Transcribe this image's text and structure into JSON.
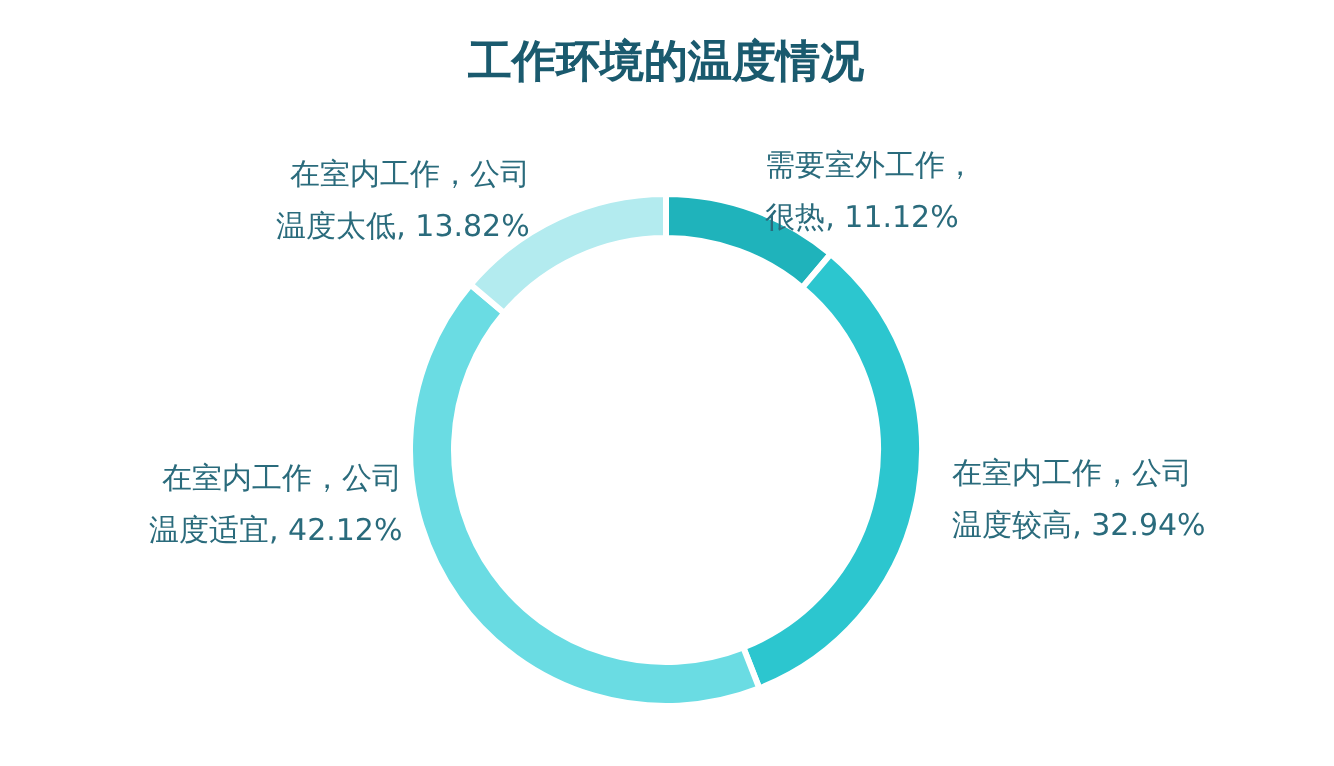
{
  "chart_data": {
    "type": "donut",
    "title": "工作环境的温度情况",
    "categories": [
      "需要室外工作，很热",
      "在室内工作，公司温度较高",
      "在室内工作，公司温度适宜",
      "在室内工作，公司温度太低"
    ],
    "values": [
      11.12,
      32.94,
      42.12,
      13.82
    ],
    "value_labels": [
      "11.12%",
      "32.94%",
      "42.12%",
      "13.82%"
    ],
    "colors": [
      "#1fb3bb",
      "#2cc6cf",
      "#6adce3",
      "#b3ebef"
    ]
  }
}
